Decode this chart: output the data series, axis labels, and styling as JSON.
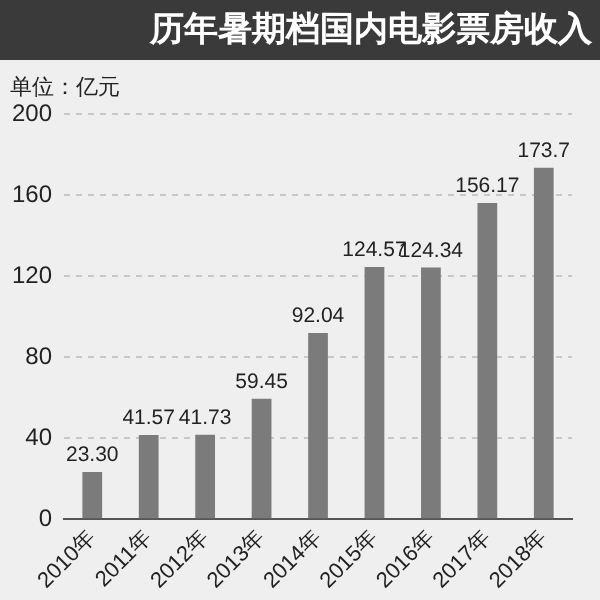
{
  "chart_data": {
    "type": "bar",
    "title": "历年暑期档国内电影票房收入",
    "ylabel": "单位：亿元",
    "categories": [
      "2010年",
      "2011年",
      "2012年",
      "2013年",
      "2014年",
      "2015年",
      "2016年",
      "2017年",
      "2018年"
    ],
    "values": [
      23.3,
      41.57,
      41.73,
      59.45,
      92.04,
      124.57,
      124.34,
      156.17,
      173.7
    ],
    "value_labels": [
      "23.30",
      "41.57",
      "41.73",
      "59.45",
      "92.04",
      "124.57",
      "124.34",
      "156.17",
      "173.7"
    ],
    "color": "#7b7b7b",
    "ylim": [
      0,
      200
    ],
    "yticks": [
      0,
      40,
      80,
      120,
      160,
      200
    ],
    "grid": "y",
    "legend": false
  }
}
